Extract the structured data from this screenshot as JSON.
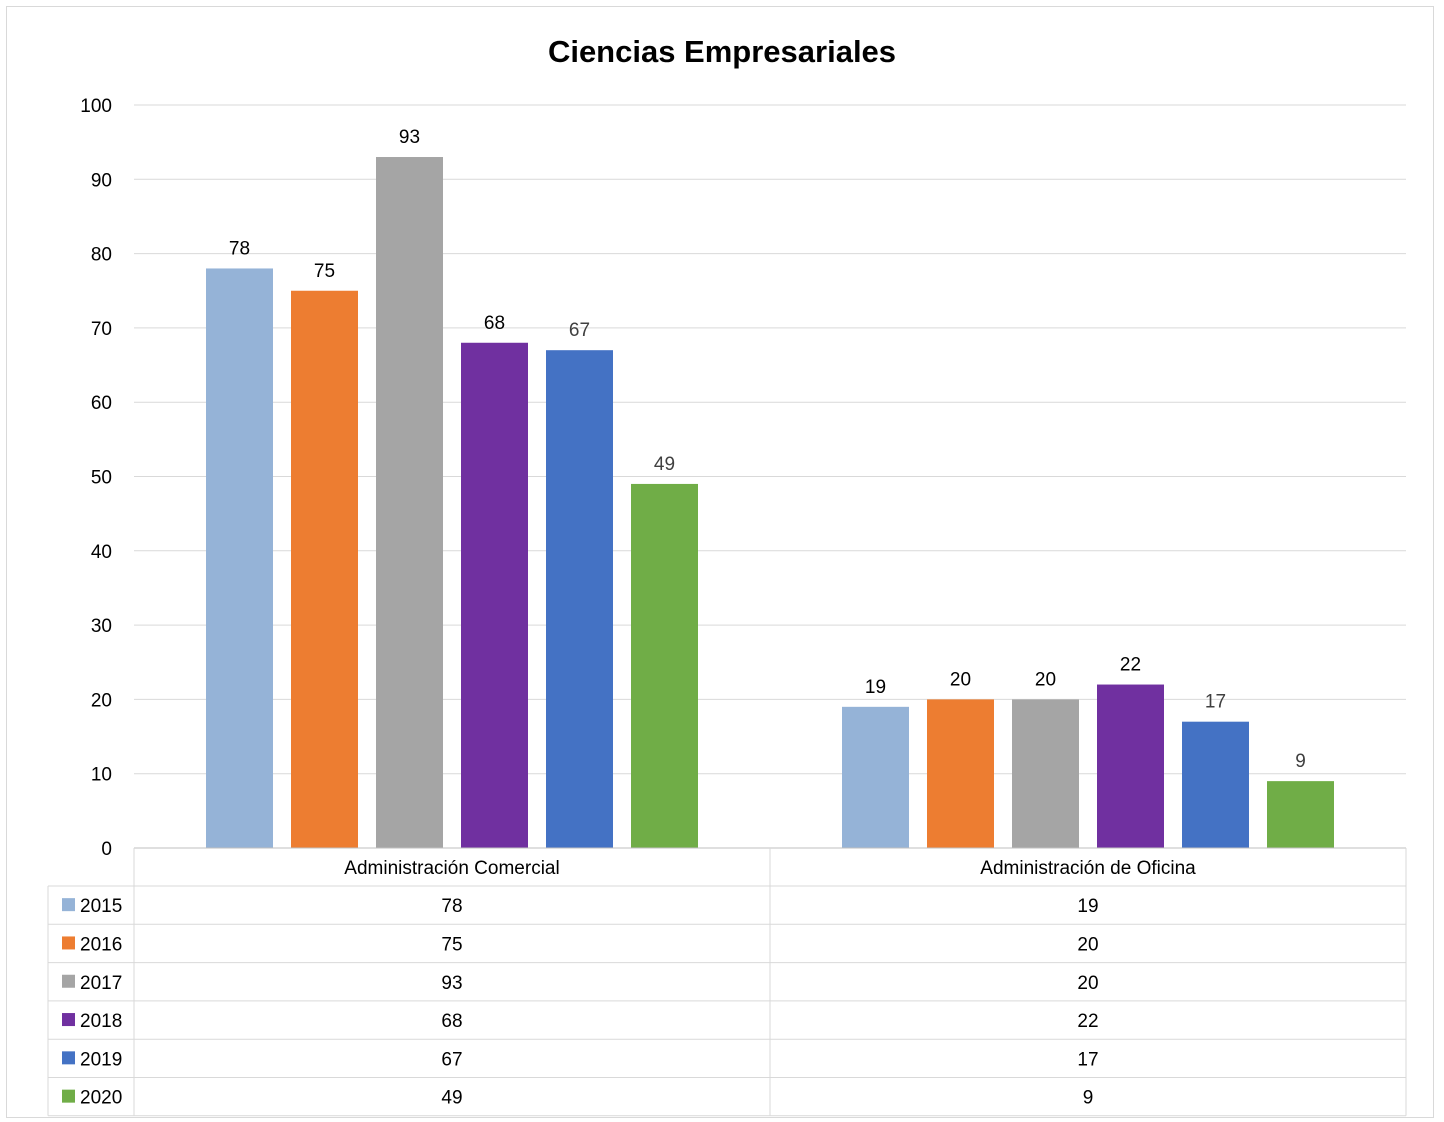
{
  "chart_data": {
    "type": "bar",
    "title": "Ciencias Empresariales",
    "categories": [
      "Administración Comercial",
      "Administración de Oficina"
    ],
    "ylim": [
      0,
      100
    ],
    "yticks": [
      0,
      10,
      20,
      30,
      40,
      50,
      60,
      70,
      80,
      90,
      100
    ],
    "grid": true,
    "legend": "data-table",
    "series": [
      {
        "name": "2015",
        "color": "#95B3D7",
        "values": [
          78,
          19
        ]
      },
      {
        "name": "2016",
        "color": "#ED7D31",
        "values": [
          75,
          20
        ]
      },
      {
        "name": "2017",
        "color": "#A5A5A5",
        "values": [
          93,
          20
        ]
      },
      {
        "name": "2018",
        "color": "#7030A0",
        "values": [
          68,
          22
        ]
      },
      {
        "name": "2019",
        "color": "#4472C4",
        "values": [
          67,
          17
        ]
      },
      {
        "name": "2020",
        "color": "#70AD47",
        "values": [
          49,
          9
        ]
      }
    ]
  }
}
